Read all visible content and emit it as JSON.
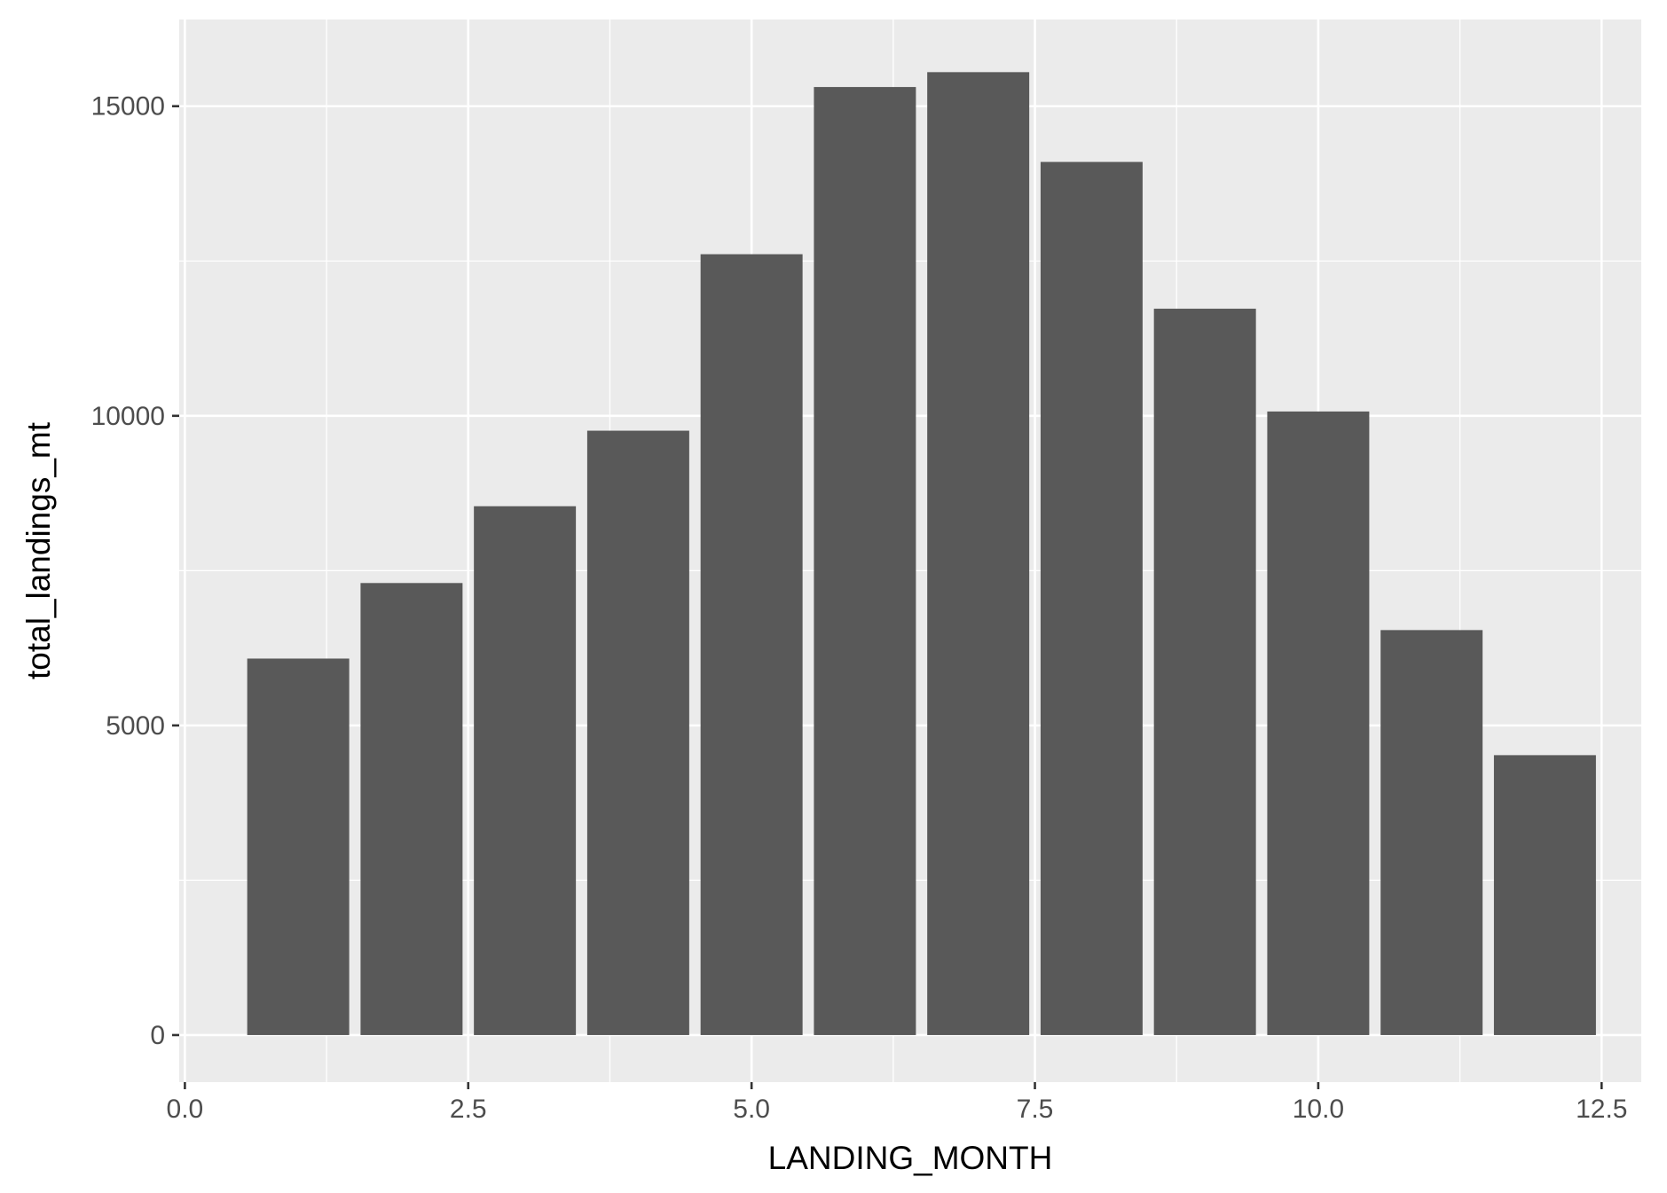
{
  "chart_data": {
    "type": "bar",
    "title": "",
    "xlabel": "LANDING_MONTH",
    "ylabel": "total_landings_mt",
    "x": [
      1,
      2,
      3,
      4,
      5,
      6,
      7,
      8,
      9,
      10,
      11,
      12
    ],
    "values": [
      6080,
      7300,
      8540,
      9760,
      12610,
      15310,
      15550,
      14100,
      11730,
      10070,
      6540,
      4520
    ],
    "bar_width": 0.9,
    "xlim": [
      -0.05,
      12.85
    ],
    "ylim": [
      -760,
      16400
    ],
    "x_ticks": [
      {
        "value": 0,
        "label": "0.0"
      },
      {
        "value": 2.5,
        "label": "2.5"
      },
      {
        "value": 5,
        "label": "5.0"
      },
      {
        "value": 7.5,
        "label": "7.5"
      },
      {
        "value": 10,
        "label": "10.0"
      },
      {
        "value": 12.5,
        "label": "12.5"
      }
    ],
    "y_ticks": [
      {
        "value": 0,
        "label": "0"
      },
      {
        "value": 5000,
        "label": "5000"
      },
      {
        "value": 10000,
        "label": "10000"
      },
      {
        "value": 15000,
        "label": "15000"
      }
    ],
    "x_minor_ticks": [
      1.25,
      3.75,
      6.25,
      8.75,
      11.25
    ],
    "y_minor_ticks": [
      2500,
      7500,
      12500
    ],
    "grid": true,
    "legend": "none",
    "colors": {
      "panel": "#ebebeb",
      "grid": "#ffffff",
      "bar": "#595959",
      "tick_text": "#4d4d4d",
      "tick_mark": "#333333",
      "title_text": "#000000"
    }
  }
}
